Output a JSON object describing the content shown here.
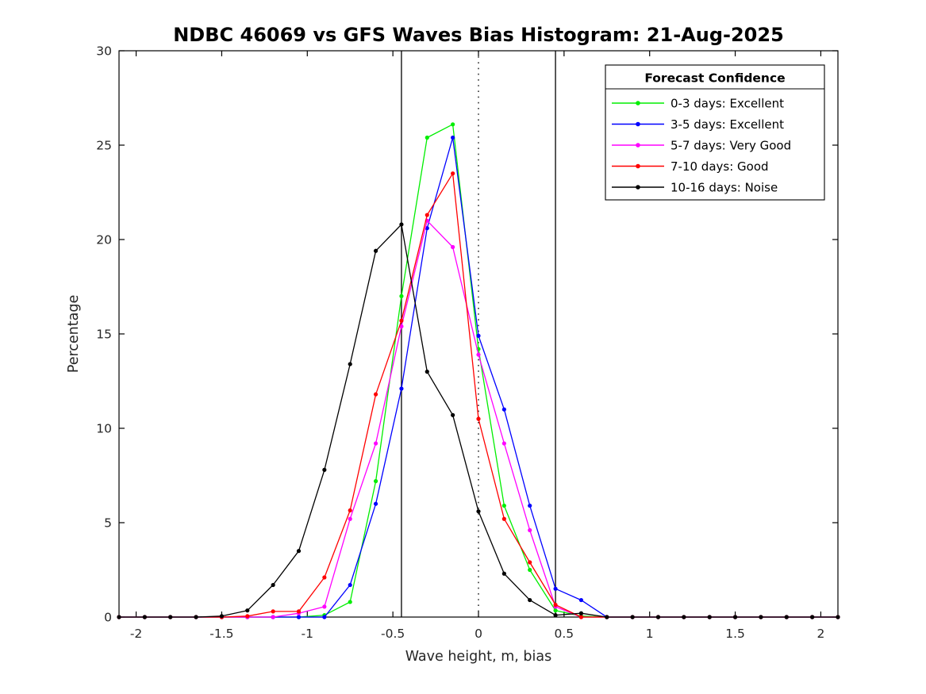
{
  "figure": {
    "title": "NDBC 46069 vs GFS Waves Bias Histogram: 21-Aug-2025"
  },
  "chart_data": {
    "type": "line",
    "title": "NDBC 46069 vs GFS Waves Bias Histogram: 21-Aug-2025",
    "xlabel": "Wave height, m, bias",
    "ylabel": "Percentage",
    "xlim": [
      -2.1,
      2.1
    ],
    "ylim": [
      0,
      30
    ],
    "grid": false,
    "xticks": [
      -2,
      -1.5,
      -1,
      -0.5,
      0,
      0.5,
      1,
      1.5,
      2
    ],
    "xtick_labels": [
      "-2",
      "-1.5",
      "-1",
      "-0.5",
      "0",
      "0.5",
      "1",
      "1.5",
      "2"
    ],
    "yticks": [
      0,
      5,
      10,
      15,
      20,
      25,
      30
    ],
    "ytick_labels": [
      "0",
      "5",
      "10",
      "15",
      "20",
      "25",
      "30"
    ],
    "x": [
      -2.1,
      -1.95,
      -1.8,
      -1.65,
      -1.5,
      -1.35,
      -1.2,
      -1.05,
      -0.9,
      -0.75,
      -0.6,
      -0.45,
      -0.3,
      -0.15,
      0,
      0.15,
      0.3,
      0.45,
      0.6,
      0.75,
      0.9,
      1.05,
      1.2,
      1.35,
      1.5,
      1.65,
      1.8,
      1.95,
      2.1
    ],
    "series": [
      {
        "name": "0-3 days: Excellent",
        "color": "#00ee00",
        "values": [
          0,
          0,
          0,
          0,
          0,
          0,
          0,
          0,
          0.1,
          0.8,
          7.2,
          17.0,
          25.4,
          26.1,
          14.2,
          5.9,
          2.5,
          0.35,
          0.05,
          0,
          0,
          0,
          0,
          0,
          0,
          0,
          0,
          0,
          0
        ]
      },
      {
        "name": "3-5 days: Excellent",
        "color": "#0000ff",
        "values": [
          0,
          0,
          0,
          0,
          0,
          0,
          0,
          0,
          0,
          1.7,
          6.0,
          12.1,
          20.6,
          25.4,
          14.9,
          11.0,
          5.9,
          1.5,
          0.9,
          0,
          0,
          0,
          0,
          0,
          0,
          0,
          0,
          0,
          0
        ]
      },
      {
        "name": "5-7 days: Very Good",
        "color": "#ff00ff",
        "values": [
          0,
          0,
          0,
          0,
          0,
          0,
          0,
          0.2,
          0.55,
          5.2,
          9.2,
          15.4,
          21.0,
          19.6,
          13.9,
          9.2,
          4.6,
          0.55,
          0,
          0,
          0,
          0,
          0,
          0,
          0,
          0,
          0,
          0,
          0
        ]
      },
      {
        "name": "7-10 days: Good",
        "color": "#ff0000",
        "values": [
          0,
          0,
          0,
          0,
          0,
          0.05,
          0.3,
          0.3,
          2.1,
          5.65,
          11.8,
          15.7,
          21.3,
          23.5,
          10.5,
          5.2,
          2.9,
          0.65,
          0,
          0,
          0,
          0,
          0,
          0,
          0,
          0,
          0,
          0,
          0
        ]
      },
      {
        "name": "10-16 days: Noise",
        "color": "#000000",
        "values": [
          0,
          0,
          0,
          0,
          0.05,
          0.35,
          1.7,
          3.5,
          7.8,
          13.4,
          19.4,
          20.8,
          13.0,
          10.7,
          5.6,
          2.3,
          0.9,
          0.1,
          0.2,
          0,
          0,
          0,
          0,
          0,
          0,
          0,
          0,
          0,
          0
        ]
      }
    ],
    "reference_lines": [
      {
        "x": -0.45,
        "style": "solid",
        "color": "#000000"
      },
      {
        "x": 0,
        "style": "dotted",
        "color": "#000000"
      },
      {
        "x": 0.45,
        "style": "solid",
        "color": "#000000"
      }
    ],
    "legend": {
      "title": "Forecast Confidence",
      "position": "top-right",
      "entries": [
        "0-3 days: Excellent",
        "3-5 days: Excellent",
        "5-7 days: Very Good",
        "7-10 days: Good",
        "10-16 days: Noise"
      ]
    },
    "text_color": "#262626",
    "axis_color": "#000000"
  }
}
